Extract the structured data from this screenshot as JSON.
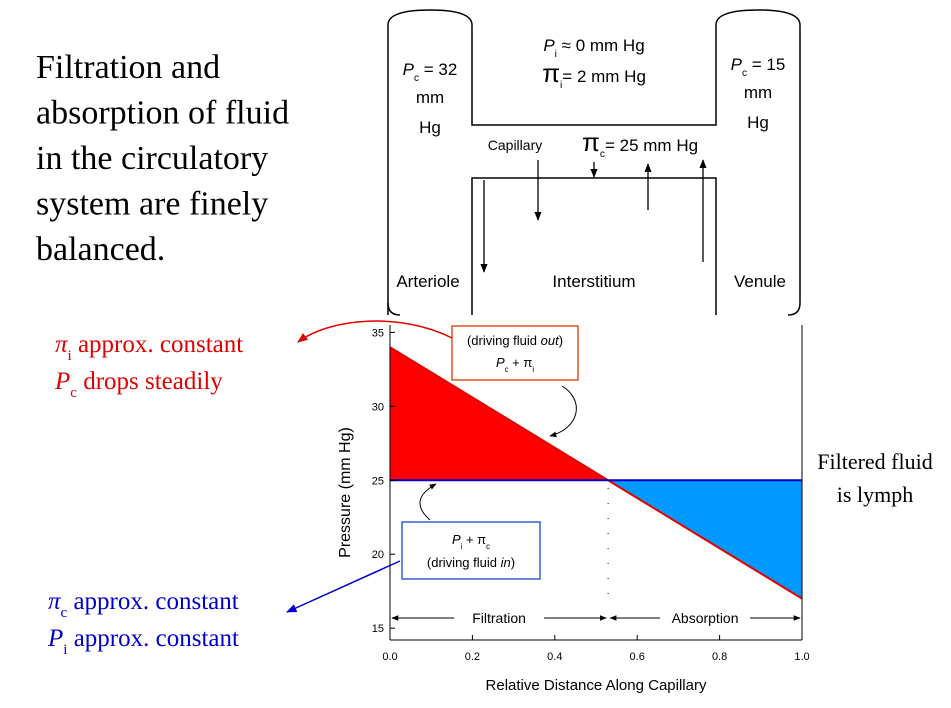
{
  "slide": {
    "title_lines": [
      "Filtration and",
      "absorption of fluid",
      "in the circulatory",
      "system are finely",
      "balanced."
    ],
    "red_note": {
      "line1": [
        "π",
        "i",
        " approx. constant"
      ],
      "line2": [
        "P",
        "c",
        " drops steadily"
      ]
    },
    "blue_note": {
      "line1": [
        "π",
        "c",
        " approx. constant"
      ],
      "line2": [
        "P",
        "i",
        " approx. constant"
      ]
    },
    "lymph_note": [
      "Filtered fluid",
      "is lymph"
    ]
  },
  "diagram": {
    "arteriole_pressure": {
      "line1": [
        "P",
        "c",
        " = 32"
      ],
      "line2": "mm",
      "line3": "Hg"
    },
    "venule_pressure": {
      "line1": [
        "P",
        "c",
        " = 15"
      ],
      "line2": "mm",
      "line3": "Hg"
    },
    "interstitial_pressure": [
      "P",
      "i",
      " ≈ 0 mm Hg"
    ],
    "interstitial_oncotic": [
      "π",
      "i",
      "= 2 mm Hg"
    ],
    "capillary": "Capillary",
    "capillary_oncotic": [
      "π",
      "c",
      "= 25 mm Hg"
    ],
    "arteriole": "Arteriole",
    "interstitium": "Interstitium",
    "venule": "Venule"
  },
  "chart_data": {
    "type": "line",
    "xlabel": "Relative Distance Along Capillary",
    "ylabel": "Pressure  (mm Hg)",
    "xlim": [
      0,
      1
    ],
    "xticks": [
      {
        "value": 0,
        "label": "0.0"
      },
      0.2,
      0.4,
      0.6,
      0.8,
      {
        "value": 1,
        "label": "1.0"
      }
    ],
    "ylim": [
      14.2,
      35.5
    ],
    "yticks": [
      15,
      20,
      25,
      30,
      35
    ],
    "series": [
      {
        "color": "#e00000",
        "fill": "#ff0000",
        "x": [
          0,
          1
        ],
        "values": [
          34,
          17
        ]
      },
      {
        "color": "#0000cc",
        "fill": "#0099ff",
        "x": [
          0,
          1
        ],
        "values": [
          25,
          25
        ]
      }
    ],
    "regions": [
      "Filtration",
      "Absorption"
    ],
    "out_box": {
      "line1": [
        "(driving fluid ",
        "out",
        ")"
      ],
      "formula": [
        "P",
        "c",
        " + ",
        "π",
        "i"
      ]
    },
    "in_box": {
      "formula": [
        "P",
        "i",
        " + ",
        "π",
        "c"
      ],
      "line2": [
        "(driving fluid ",
        "in",
        ")"
      ]
    }
  }
}
